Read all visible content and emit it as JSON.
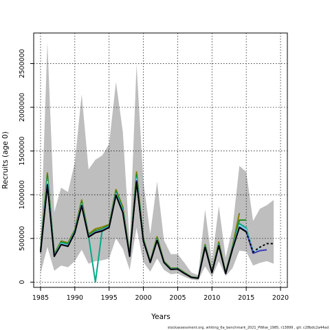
{
  "chart_data": {
    "type": "line",
    "title": "",
    "xlabel": "Years",
    "ylabel": "Recruits (age 0)",
    "xlim": [
      1984,
      2021
    ],
    "ylim": [
      -60000,
      2850000
    ],
    "xticks": [
      1985,
      1990,
      1995,
      2000,
      2005,
      2010,
      2015,
      2020
    ],
    "yticks": [
      0,
      500000,
      1000000,
      1500000,
      2000000,
      2500000
    ],
    "grid": true,
    "legend": "none",
    "footer": "stockassessment.org, whiting_6a_benchmark_2021_PWise_1985, r13899 , git: c28bdc2a44ad",
    "band": {
      "color": "#bebebe",
      "x": [
        1985,
        1986,
        1987,
        1988,
        1989,
        1990,
        1991,
        1992,
        1993,
        1994,
        1995,
        1996,
        1997,
        1998,
        1999,
        2000,
        2001,
        2002,
        2003,
        2004,
        2005,
        2006,
        2007,
        2008,
        2009,
        2010,
        2011,
        2012,
        2013,
        2014,
        2015,
        2016,
        2017,
        2018,
        2019
      ],
      "upper": [
        420000,
        2750000,
        800000,
        1080000,
        1030000,
        1370000,
        2150000,
        1290000,
        1400000,
        1450000,
        1580000,
        2290000,
        1720000,
        450000,
        2490000,
        1150000,
        550000,
        1150000,
        480000,
        320000,
        320000,
        220000,
        110000,
        80000,
        830000,
        240000,
        870000,
        280000,
        620000,
        1330000,
        1260000,
        700000,
        840000,
        880000,
        940000
      ],
      "lower": [
        100000,
        400000,
        130000,
        190000,
        170000,
        240000,
        370000,
        210000,
        240000,
        250000,
        270000,
        500000,
        380000,
        140000,
        620000,
        230000,
        120000,
        270000,
        140000,
        90000,
        100000,
        60000,
        30000,
        20000,
        180000,
        60000,
        240000,
        70000,
        160000,
        360000,
        350000,
        190000,
        220000,
        240000,
        210000
      ]
    },
    "series": [
      {
        "color": "#808000",
        "x": [
          1985,
          1986,
          1987,
          1988,
          1989,
          1990,
          1991,
          1992,
          1993,
          1994,
          1995,
          1996,
          1997,
          1998,
          1999,
          2000,
          2001,
          2002,
          2003,
          2004,
          2005,
          2006,
          2007,
          2008,
          2009,
          2010,
          2011,
          2012,
          2013,
          2014
        ],
        "values": [
          380000,
          1250000,
          320000,
          470000,
          450000,
          600000,
          940000,
          550000,
          610000,
          630000,
          660000,
          1060000,
          860000,
          320000,
          1260000,
          500000,
          240000,
          520000,
          240000,
          160000,
          160000,
          110000,
          60000,
          50000,
          430000,
          120000,
          460000,
          110000,
          410000,
          790000
        ]
      },
      {
        "color": "#228b22",
        "x": [
          1985,
          1986,
          1987,
          1988,
          1989,
          1990,
          1991,
          1992,
          1993,
          1994,
          1995,
          1996,
          1997,
          1998,
          1999,
          2000,
          2001,
          2002,
          2003,
          2004,
          2005,
          2006,
          2007,
          2008,
          2009,
          2010,
          2011,
          2012,
          2013,
          2014,
          2015
        ],
        "values": [
          360000,
          1220000,
          310000,
          460000,
          440000,
          590000,
          920000,
          540000,
          590000,
          610000,
          650000,
          1040000,
          840000,
          310000,
          1230000,
          490000,
          235000,
          500000,
          235000,
          155000,
          158000,
          105000,
          58000,
          48000,
          420000,
          115000,
          440000,
          105000,
          400000,
          710000,
          710000
        ]
      },
      {
        "color": "#00aa88",
        "x": [
          1985,
          1986,
          1987,
          1988,
          1989,
          1990,
          1991,
          1992,
          1993,
          1994,
          1995,
          1996,
          1997,
          1998,
          1999,
          2000,
          2001,
          2002,
          2003,
          2004,
          2005,
          2006,
          2007,
          2008,
          2009,
          2010,
          2011,
          2012,
          2013,
          2014,
          2015,
          2016
        ],
        "values": [
          350000,
          1180000,
          305000,
          450000,
          430000,
          580000,
          900000,
          530000,
          580,
          600000,
          640000,
          1020000,
          820000,
          305000,
          1200000,
          480000,
          230000,
          490000,
          230000,
          150000,
          155000,
          102000,
          56000,
          46000,
          410000,
          112000,
          430000,
          102000,
          390000,
          670000,
          620000,
          350000
        ]
      },
      {
        "color": "#87ceeb",
        "x": [
          1985,
          1986,
          1987,
          1988,
          1989,
          1990,
          1991,
          1992,
          1993,
          1994,
          1995,
          1996,
          1997,
          1998,
          1999,
          2000,
          2001,
          2002,
          2003,
          2004,
          2005,
          2006,
          2007,
          2008,
          2009,
          2010,
          2011,
          2012,
          2013,
          2014,
          2015,
          2016,
          2017
        ],
        "values": [
          345000,
          1150000,
          300000,
          440000,
          420000,
          575000,
          890000,
          525000,
          575000,
          595000,
          635000,
          1010000,
          810000,
          300000,
          1180000,
          475000,
          228000,
          485000,
          228000,
          148000,
          153000,
          100000,
          55000,
          45000,
          405000,
          110000,
          425000,
          100000,
          385000,
          650000,
          600000,
          340000,
          390000
        ]
      },
      {
        "color": "#3a3ab8",
        "x": [
          1985,
          1986,
          1987,
          1988,
          1989,
          1990,
          1991,
          1992,
          1993,
          1994,
          1995,
          1996,
          1997,
          1998,
          1999,
          2000,
          2001,
          2002,
          2003,
          2004,
          2005,
          2006,
          2007,
          2008,
          2009,
          2010,
          2011,
          2012,
          2013,
          2014,
          2015,
          2016,
          2017,
          2018
        ],
        "values": [
          340000,
          1120000,
          295000,
          430000,
          410000,
          570000,
          880000,
          520000,
          570000,
          590000,
          630000,
          1000000,
          800000,
          295000,
          1160000,
          470000,
          225000,
          480000,
          225000,
          145000,
          150000,
          98000,
          54000,
          44000,
          400000,
          108000,
          420000,
          98000,
          380000,
          630000,
          580000,
          330000,
          360000,
          370000
        ]
      },
      {
        "color": "#000000",
        "x": [
          1985,
          1986,
          1987,
          1988,
          1989,
          1990,
          1991,
          1992,
          1993,
          1994,
          1995,
          1996,
          1997,
          1998,
          1999,
          2000,
          2001,
          2002,
          2003,
          2004,
          2005,
          2006,
          2007,
          2008,
          2009,
          2010,
          2011,
          2012,
          2013,
          2014,
          2015,
          2016,
          2017,
          2018,
          2019
        ],
        "values": [
          340000,
          1110000,
          295000,
          430000,
          410000,
          565000,
          875000,
          515000,
          565000,
          585000,
          625000,
          995000,
          795000,
          295000,
          1150000,
          468000,
          225000,
          478000,
          225000,
          145000,
          150000,
          98000,
          54000,
          44000,
          400000,
          108000,
          418000,
          98000,
          378000,
          625000,
          575000,
          345000,
          400000,
          440000,
          440000
        ],
        "dashed_from": 2016
      }
    ]
  }
}
